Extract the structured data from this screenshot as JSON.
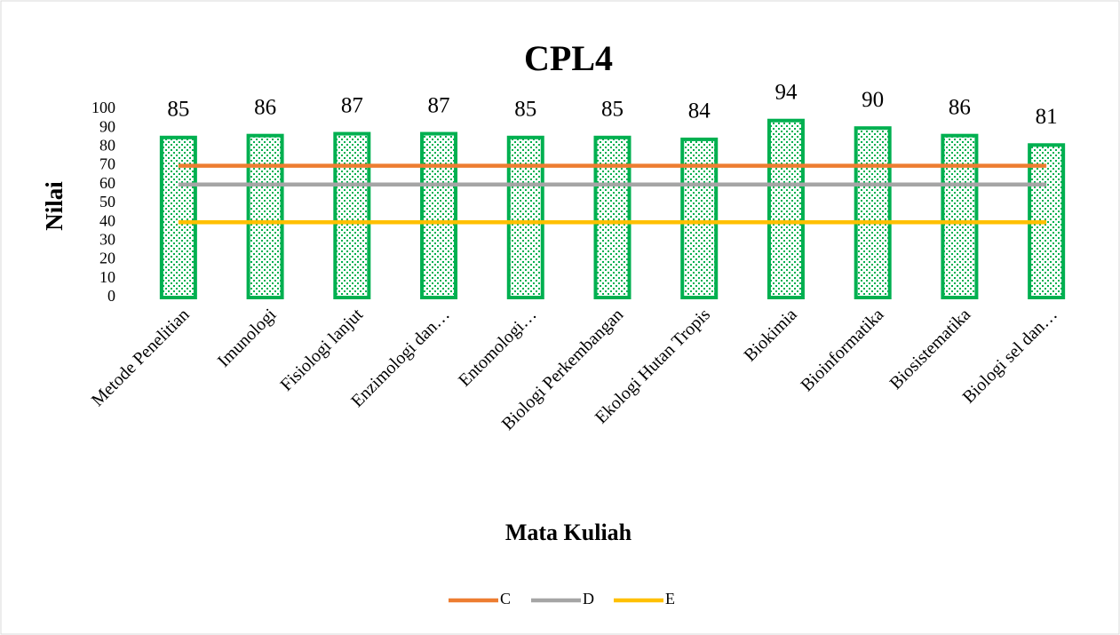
{
  "chart_data": {
    "type": "bar",
    "title": "CPL4",
    "x_label": "Mata Kuliah",
    "y_label": "Nilai",
    "categories": [
      "Metode Penelitian",
      "Imunologi",
      "Fisiologi lanjut",
      "Enzimologi dan…",
      "Entomologi…",
      "Biologi Perkembangan",
      "Ekologi Hutan Tropis",
      "Biokimia",
      "Bioinformatika",
      "Biosistematika",
      "Biologi sel dan…"
    ],
    "values": [
      85,
      86,
      87,
      87,
      85,
      85,
      84,
      94,
      90,
      86,
      81
    ],
    "color": "#00b050",
    "series": [
      {
        "name": "C",
        "color": "#ed7d31",
        "values": [
          70,
          70,
          70,
          70,
          70,
          70,
          70,
          70,
          70,
          70,
          70
        ]
      },
      {
        "name": "D",
        "color": "#a5a5a5",
        "values": [
          60,
          60,
          60,
          60,
          60,
          60,
          60,
          60,
          60,
          60,
          60
        ]
      },
      {
        "name": "E",
        "color": "#ffc000",
        "values": [
          40,
          40,
          40,
          40,
          40,
          40,
          40,
          40,
          40,
          40,
          40
        ]
      }
    ],
    "ylim": [
      0,
      100
    ],
    "yticks": [
      0,
      10,
      20,
      30,
      40,
      50,
      60,
      70,
      80,
      90,
      100
    ],
    "grid": false,
    "legend": "bottom"
  }
}
